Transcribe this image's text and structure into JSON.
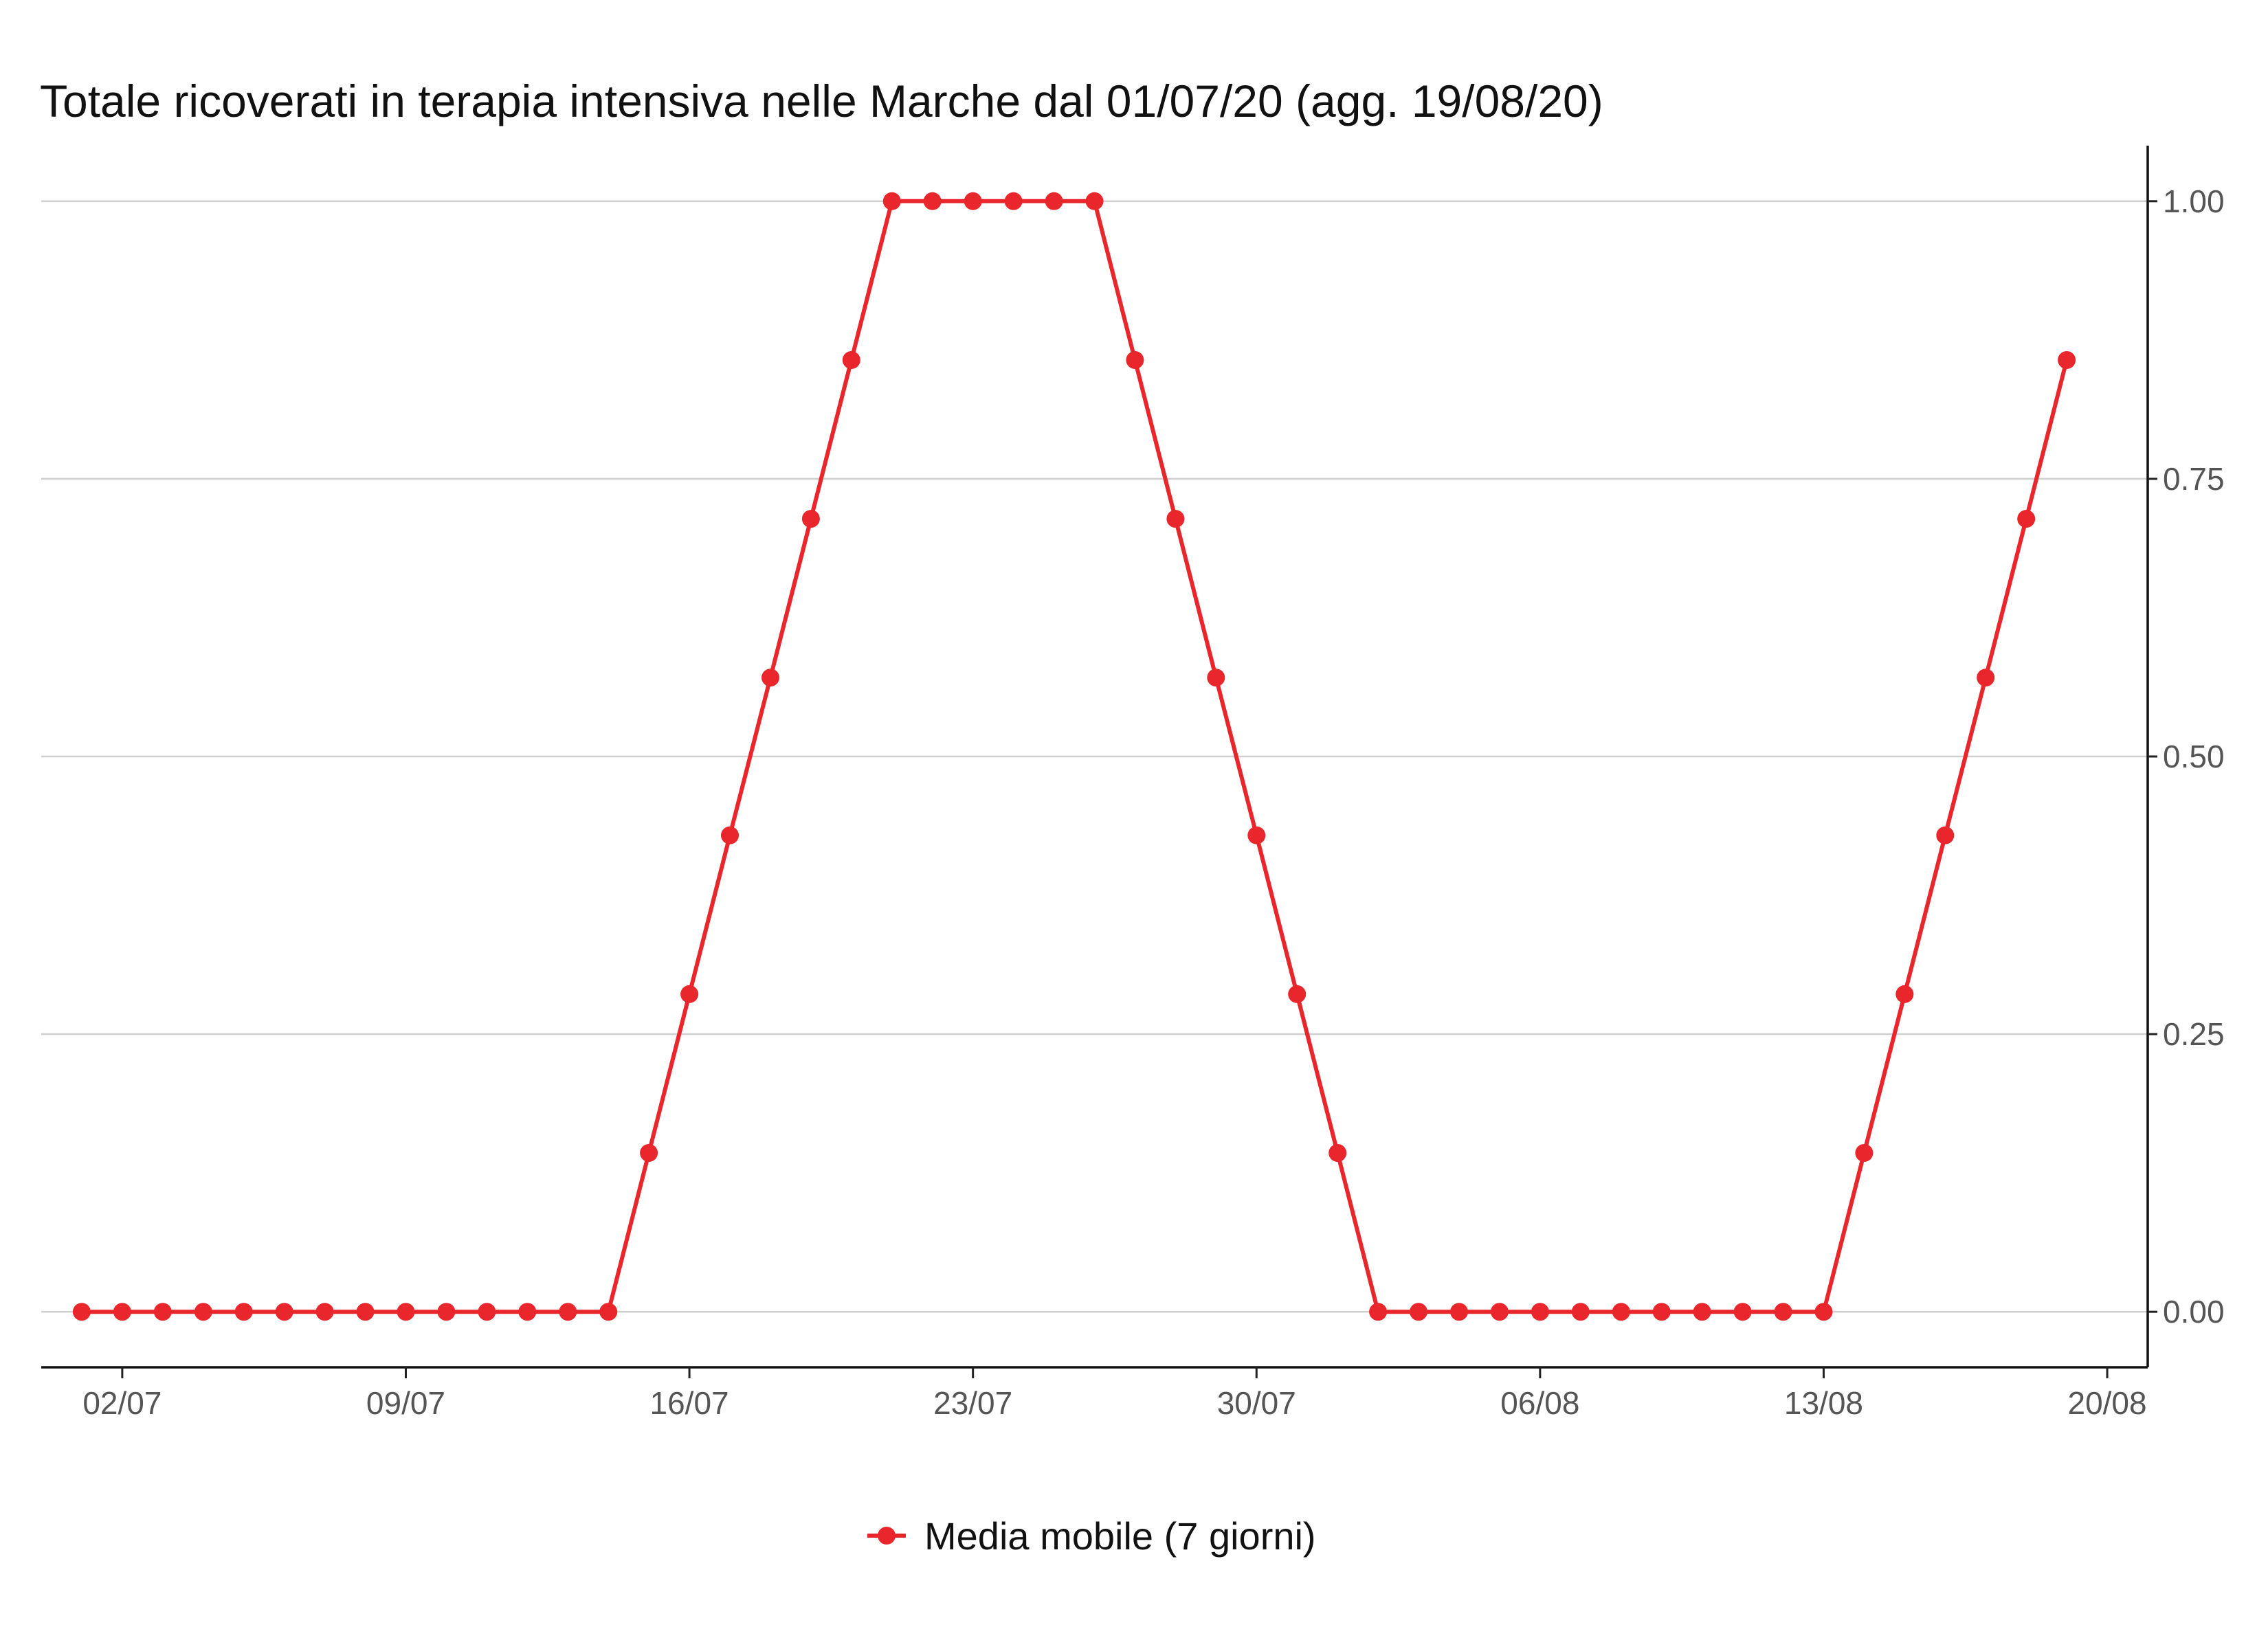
{
  "chart_data": {
    "type": "line",
    "title": "Totale ricoverati in terapia intensiva nelle Marche dal 01/07/20 (agg. 19/08/20)",
    "xlabel": "",
    "ylabel": "",
    "x_axis": {
      "type": "date",
      "range": [
        "30/06/2020",
        "21/08/2020"
      ],
      "ticks": [
        "02/07",
        "09/07",
        "16/07",
        "23/07",
        "30/07",
        "06/08",
        "13/08",
        "20/08"
      ]
    },
    "y_axis": {
      "position": "right",
      "range": [
        -0.05,
        1.05
      ],
      "ticks": [
        "0.00",
        "0.25",
        "0.50",
        "0.75",
        "1.00"
      ]
    },
    "grid": "horizontal-major",
    "legend_position": "bottom",
    "series": [
      {
        "name": "Media mobile (7 giorni)",
        "color": "#e8262b",
        "marker": "circle",
        "x": [
          "01/07/2020",
          "02/07/2020",
          "03/07/2020",
          "04/07/2020",
          "05/07/2020",
          "06/07/2020",
          "07/07/2020",
          "08/07/2020",
          "09/07/2020",
          "10/07/2020",
          "11/07/2020",
          "12/07/2020",
          "13/07/2020",
          "14/07/2020",
          "15/07/2020",
          "16/07/2020",
          "17/07/2020",
          "18/07/2020",
          "19/07/2020",
          "20/07/2020",
          "21/07/2020",
          "22/07/2020",
          "23/07/2020",
          "24/07/2020",
          "25/07/2020",
          "26/07/2020",
          "27/07/2020",
          "28/07/2020",
          "29/07/2020",
          "30/07/2020",
          "31/07/2020",
          "01/08/2020",
          "02/08/2020",
          "03/08/2020",
          "04/08/2020",
          "05/08/2020",
          "06/08/2020",
          "07/08/2020",
          "08/08/2020",
          "09/08/2020",
          "10/08/2020",
          "11/08/2020",
          "12/08/2020",
          "13/08/2020",
          "14/08/2020",
          "15/08/2020",
          "16/08/2020",
          "17/08/2020",
          "18/08/2020",
          "19/08/2020"
        ],
        "values": [
          0,
          0,
          0,
          0,
          0,
          0,
          0,
          0,
          0,
          0,
          0,
          0,
          0,
          0,
          0.143,
          0.286,
          0.429,
          0.571,
          0.714,
          0.857,
          1,
          1,
          1,
          1,
          1,
          1,
          0.857,
          0.714,
          0.571,
          0.429,
          0.286,
          0.143,
          0,
          0,
          0,
          0,
          0,
          0,
          0,
          0,
          0,
          0,
          0,
          0,
          0.143,
          0.286,
          0.429,
          0.571,
          0.714,
          0.857
        ]
      }
    ]
  }
}
